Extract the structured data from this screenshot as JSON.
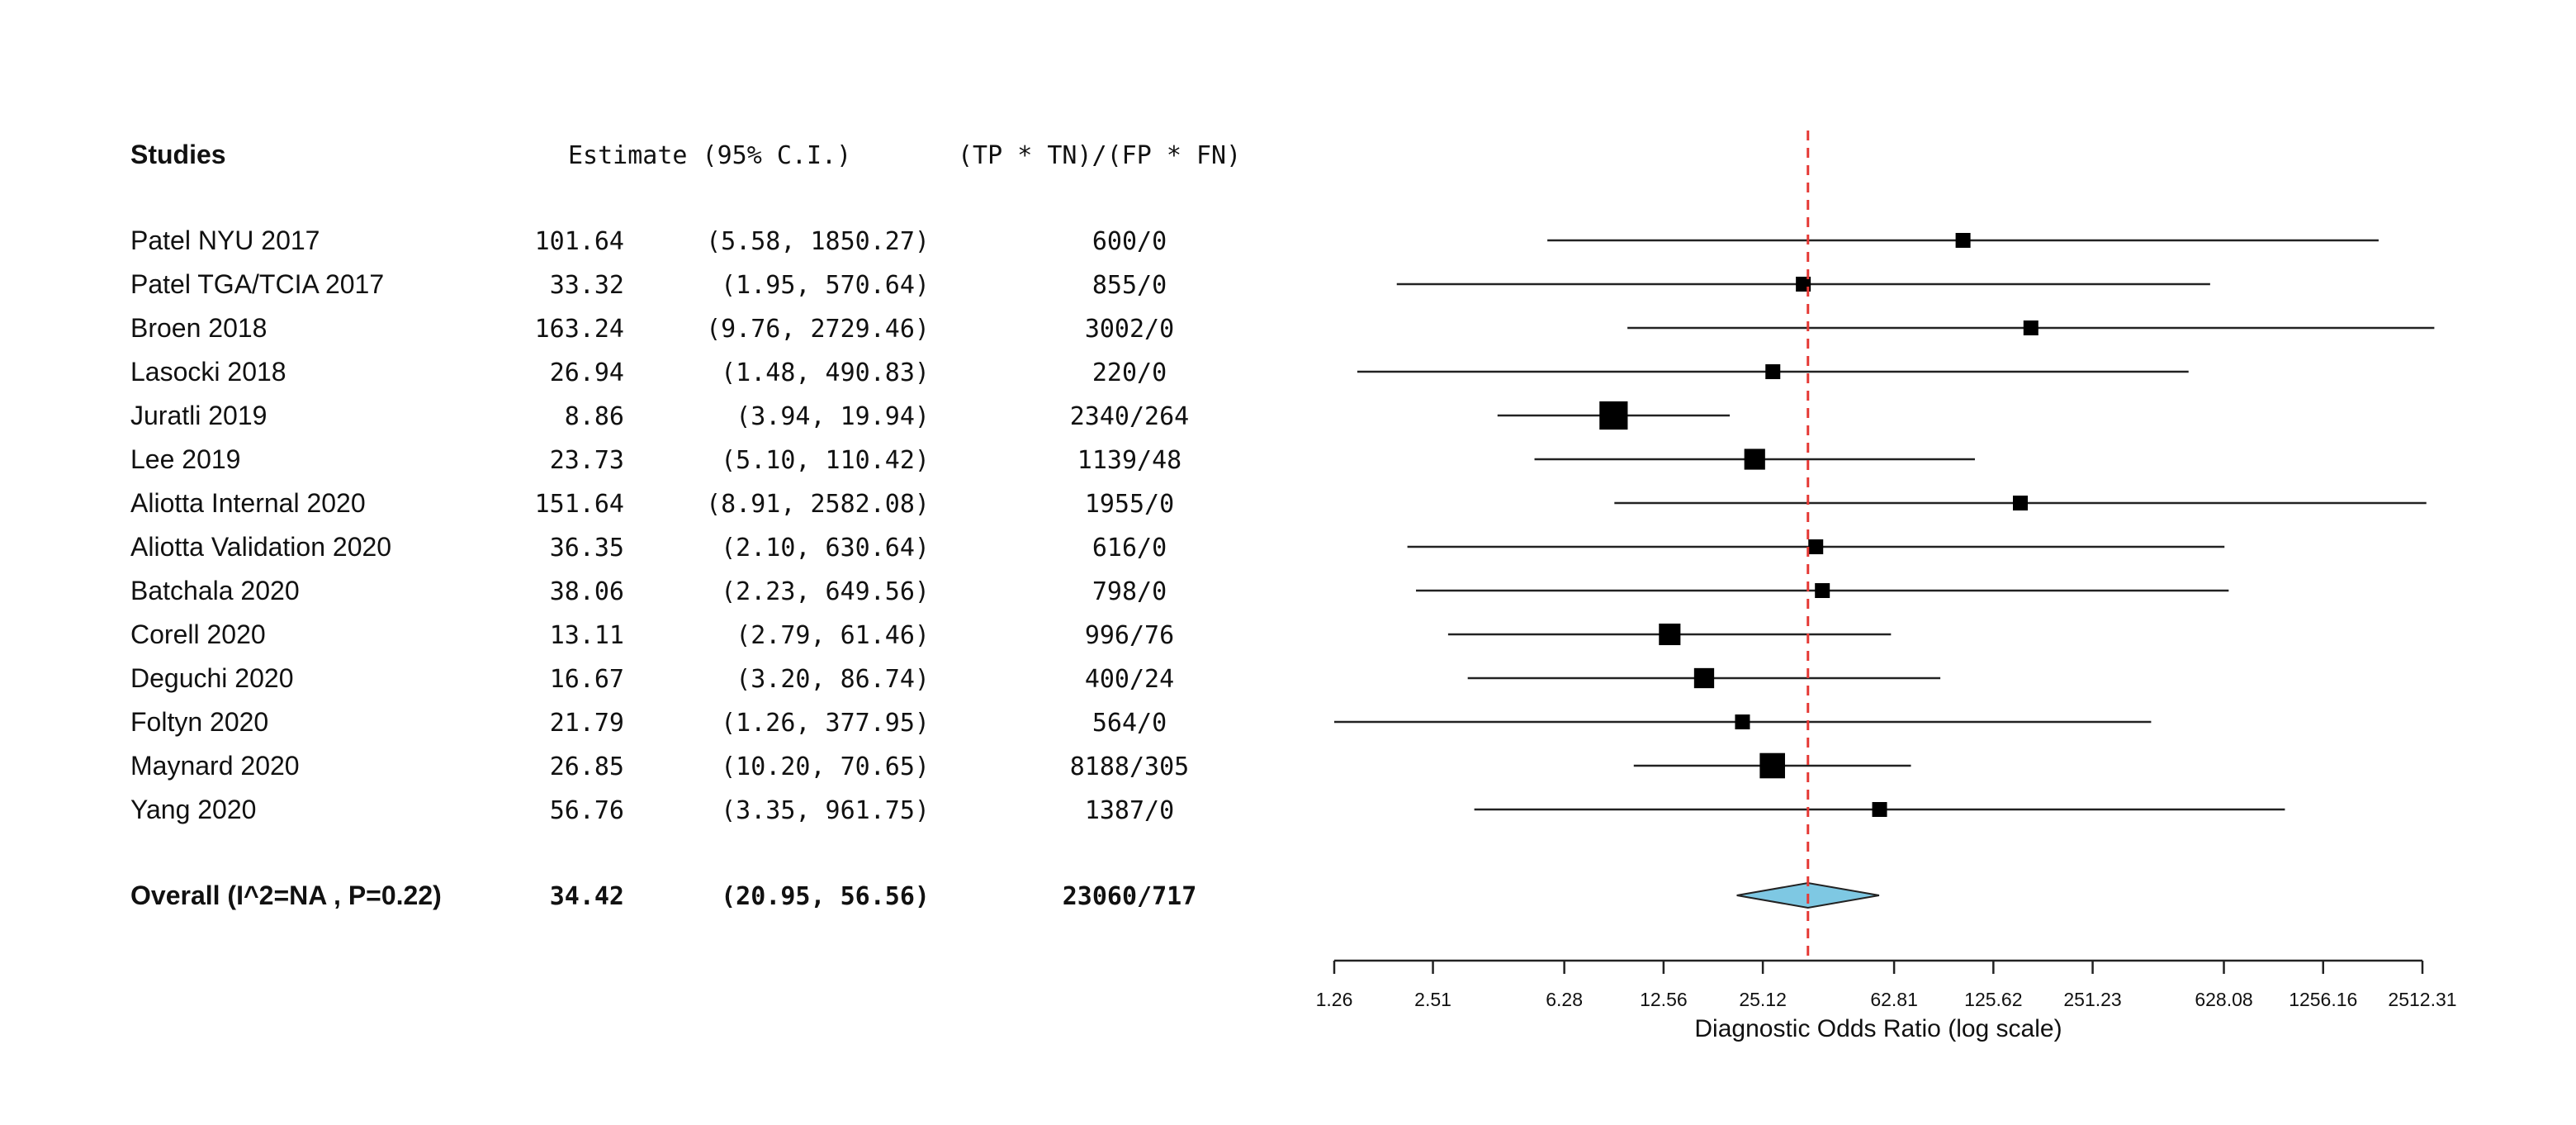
{
  "headers": {
    "studies": "Studies",
    "estimate": "Estimate (95% C.I.)",
    "ratio": "(TP * TN)/(FP * FN)"
  },
  "chart_data": {
    "type": "forest",
    "x_scale": "log",
    "xlabel": "Diagnostic Odds Ratio (log scale)",
    "xlim": [
      1.26,
      2512.31
    ],
    "ticks": [
      1.26,
      2.51,
      6.28,
      12.56,
      25.12,
      62.81,
      125.62,
      251.23,
      628.08,
      1256.16,
      2512.31
    ],
    "tick_labels": [
      "1.26",
      "2.51",
      "6.28",
      "12.56",
      "25.12",
      "62.81",
      "125.62",
      "251.23",
      "628.08",
      "1256.16",
      "2512.31"
    ],
    "reference_line": 34.42,
    "studies": [
      {
        "name": "Patel NYU 2017",
        "est": 101.64,
        "lo": 5.58,
        "hi": 1850.27,
        "est_label": "101.64",
        "lo_label": "5.58",
        "hi_label": "1850.27",
        "ratio": "600/0",
        "weight": 1.0
      },
      {
        "name": "Patel TGA/TCIA 2017",
        "est": 33.32,
        "lo": 1.95,
        "hi": 570.64,
        "est_label": "33.32",
        "lo_label": "1.95",
        "hi_label": "570.64",
        "ratio": "855/0",
        "weight": 1.0
      },
      {
        "name": "Broen 2018",
        "est": 163.24,
        "lo": 9.76,
        "hi": 2729.46,
        "est_label": "163.24",
        "lo_label": "9.76",
        "hi_label": "2729.46",
        "ratio": "3002/0",
        "weight": 1.0
      },
      {
        "name": "Lasocki 2018",
        "est": 26.94,
        "lo": 1.48,
        "hi": 490.83,
        "est_label": "26.94",
        "lo_label": "1.48",
        "hi_label": "490.83",
        "ratio": "220/0",
        "weight": 1.0
      },
      {
        "name": "Juratli 2019",
        "est": 8.86,
        "lo": 3.94,
        "hi": 19.94,
        "est_label": "8.86",
        "lo_label": "3.94",
        "hi_label": "19.94",
        "ratio": "2340/264",
        "weight": 1.9
      },
      {
        "name": "Lee 2019",
        "est": 23.73,
        "lo": 5.1,
        "hi": 110.42,
        "est_label": "23.73",
        "lo_label": "5.10",
        "hi_label": "110.42",
        "ratio": "1139/48",
        "weight": 1.4
      },
      {
        "name": "Aliotta Internal 2020",
        "est": 151.64,
        "lo": 8.91,
        "hi": 2582.08,
        "est_label": "151.64",
        "lo_label": "8.91",
        "hi_label": "2582.08",
        "ratio": "1955/0",
        "weight": 1.0
      },
      {
        "name": "Aliotta Validation 2020",
        "est": 36.35,
        "lo": 2.1,
        "hi": 630.64,
        "est_label": "36.35",
        "lo_label": "2.10",
        "hi_label": "630.64",
        "ratio": "616/0",
        "weight": 1.0
      },
      {
        "name": "Batchala 2020",
        "est": 38.06,
        "lo": 2.23,
        "hi": 649.56,
        "est_label": "38.06",
        "lo_label": "2.23",
        "hi_label": "649.56",
        "ratio": "798/0",
        "weight": 1.0
      },
      {
        "name": "Corell 2020",
        "est": 13.11,
        "lo": 2.79,
        "hi": 61.46,
        "est_label": "13.11",
        "lo_label": "2.79",
        "hi_label": "61.46",
        "ratio": "996/76",
        "weight": 1.45
      },
      {
        "name": "Deguchi 2020",
        "est": 16.67,
        "lo": 3.2,
        "hi": 86.74,
        "est_label": "16.67",
        "lo_label": "3.20",
        "hi_label": "86.74",
        "ratio": "400/24",
        "weight": 1.35
      },
      {
        "name": "Foltyn 2020",
        "est": 21.79,
        "lo": 1.26,
        "hi": 377.95,
        "est_label": "21.79",
        "lo_label": "1.26",
        "hi_label": "377.95",
        "ratio": "564/0",
        "weight": 1.0
      },
      {
        "name": "Maynard 2020",
        "est": 26.85,
        "lo": 10.2,
        "hi": 70.65,
        "est_label": "26.85",
        "lo_label": "10.20",
        "hi_label": "70.65",
        "ratio": "8188/305",
        "weight": 1.7
      },
      {
        "name": "Yang 2020",
        "est": 56.76,
        "lo": 3.35,
        "hi": 961.75,
        "est_label": "56.76",
        "lo_label": "3.35",
        "hi_label": "961.75",
        "ratio": "1387/0",
        "weight": 1.0
      }
    ],
    "overall": {
      "label": "Overall (I^2=NA , P=0.22)",
      "est": 34.42,
      "lo": 20.95,
      "hi": 56.56,
      "est_label": "34.42",
      "lo_label": "20.95",
      "hi_label": "56.56",
      "ratio": "23060/717"
    },
    "colors": {
      "diamond_fill": "#7ec8e3",
      "reference_line": "#e53935",
      "marker": "#000000",
      "line": "#222222"
    }
  }
}
